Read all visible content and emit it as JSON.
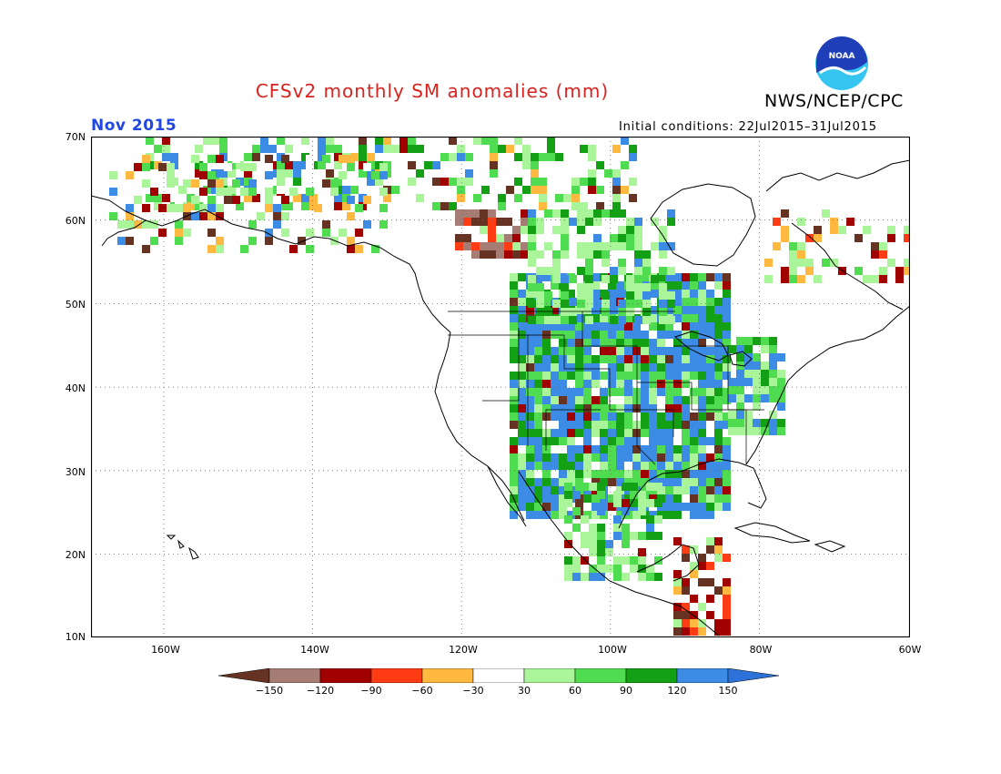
{
  "title": "CFSv2 monthly SM anomalies (mm)",
  "agency": "NWS/NCEP/CPC",
  "logo_text": "NOAA",
  "valid_month": "Nov 2015",
  "initial_conditions": "Initial conditions: 22Jul2015–31Jul2015",
  "colors": {
    "title": "#d8231e",
    "valid_month": "#2247e0",
    "logo_blue": "#1f3fb8",
    "logo_cyan": "#34c6f0"
  },
  "axes": {
    "lat_labels": [
      "70N",
      "60N",
      "50N",
      "40N",
      "30N",
      "20N",
      "10N"
    ],
    "lon_labels": [
      "160W",
      "140W",
      "120W",
      "100W",
      "80W",
      "60W"
    ],
    "lat_range": [
      10,
      70
    ],
    "lon_range": [
      -170,
      -60
    ],
    "grid": "dotted"
  },
  "colorbar": {
    "labels": [
      "−150",
      "−120",
      "−90",
      "−60",
      "−30",
      "30",
      "60",
      "90",
      "120",
      "150"
    ],
    "colors": [
      "#663322",
      "#a67d74",
      "#a00000",
      "#ff3c14",
      "#ffb840",
      "#ffffff",
      "#aaf59a",
      "#50dc50",
      "#14a014",
      "#3c8ce6",
      "#2c72d8"
    ],
    "extend": "both"
  }
}
